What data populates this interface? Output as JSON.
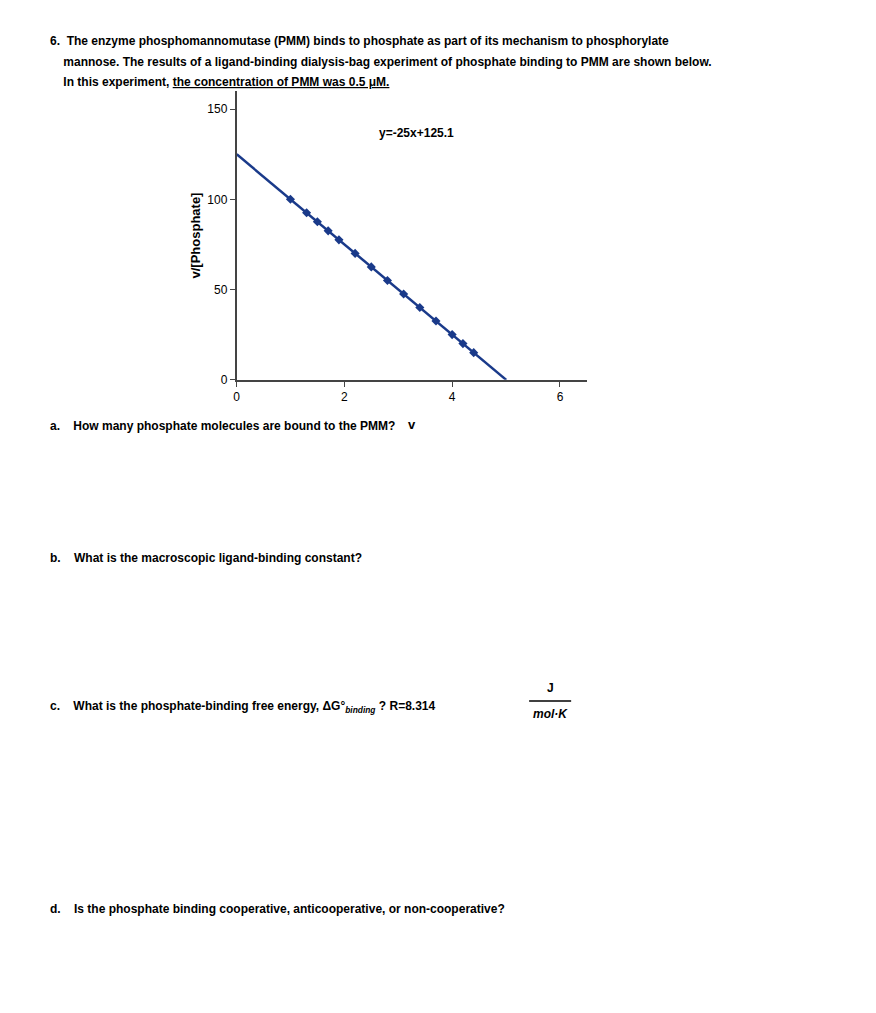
{
  "chart_data": {
    "type": "scatter",
    "xlabel": "v",
    "ylabel": "v/[Phosphate]",
    "xlim": [
      0.0,
      6.5
    ],
    "ylim": [
      0,
      160
    ],
    "xticks": [
      0.0,
      2.0,
      4.0,
      6.0
    ],
    "yticks": [
      0,
      50,
      100,
      150
    ],
    "grid": false,
    "series": [
      {
        "type": "scatter",
        "marker": "diamond",
        "color": "#1a3a8a",
        "x": [
          1.0,
          1.3,
          1.5,
          1.7,
          1.9,
          2.2,
          2.5,
          2.8,
          3.1,
          3.4,
          3.7,
          4.0,
          4.2,
          4.4
        ],
        "values": [
          100.1,
          92.6,
          87.6,
          82.6,
          77.6,
          70.1,
          62.6,
          55.1,
          47.6,
          40.1,
          32.6,
          25.1,
          20.1,
          15.1
        ]
      },
      {
        "type": "line",
        "line_style": "solid",
        "color": "#1a3a8a",
        "x": [
          0.004,
          5.004
        ],
        "values": [
          125.0,
          0.01
        ]
      }
    ],
    "annotations": [
      {
        "text": "y=-25x+125.1",
        "x": 2.6,
        "y": 132
      },
      {
        "text": "6.  The enzyme phosphomannomutase (PMM) binds to phosphate as part of its mechanism to phosphorylate"
      },
      {
        "text": "    mannose. The results of a ligand-binding dialysis-bag experiment of phosphate binding to PMM are shown below."
      },
      {
        "text": "    In this experiment, "
      },
      {
        "text": "the concentration of PMM was 0.5 μM."
      },
      {
        "text": "a.    How many phosphate molecules are bound to the PMM?"
      },
      {
        "text": "b.    What is the macroscopic ligand-binding constant?"
      },
      {
        "text": "c.    What is the phosphate-binding free energy, ΔG°"
      },
      {
        "text": "binding"
      },
      {
        "text": " ? R=8.314"
      },
      {
        "text": "J"
      },
      {
        "text": "mol·K"
      },
      {
        "text": "d.    Is the phosphate binding cooperative, anticooperative, or non-cooperative?"
      }
    ]
  }
}
